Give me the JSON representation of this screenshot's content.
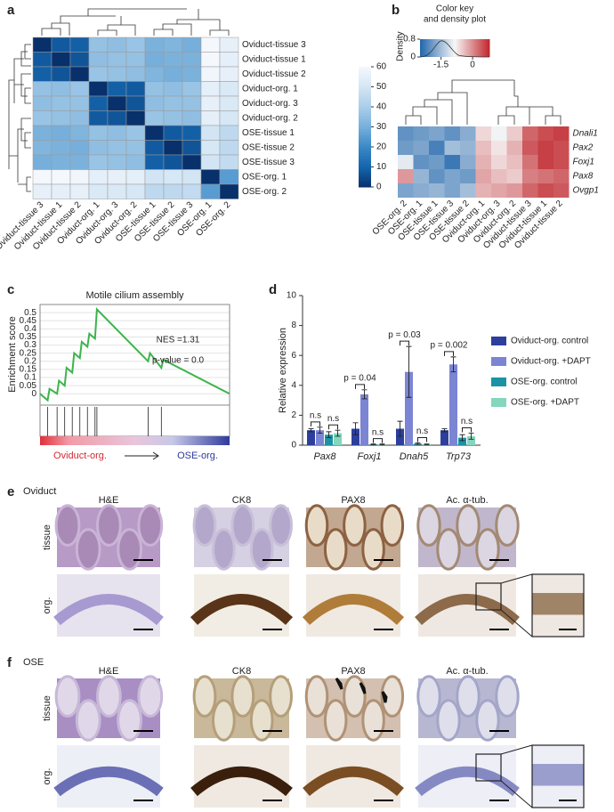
{
  "chart_data": [
    {
      "type": "heatmap",
      "rows": [
        "Oviduct-tissue 3",
        "Oviduct-tissue 1",
        "Oviduct-tissue 2",
        "Oviduct-org. 1",
        "Oviduct-org. 3",
        "Oviduct-org. 2",
        "OSE-tissue 1",
        "OSE-tissue 2",
        "OSE-tissue 3",
        "OSE-org. 1",
        "OSE-org. 2"
      ],
      "columns": [
        "Oviduct-tissue 3",
        "Oviduct-tissue 1",
        "Oviduct-tissue 2",
        "Oviduct-org. 1",
        "Oviduct-org. 3",
        "Oviduct-org. 2",
        "OSE-tissue 1",
        "OSE-tissue 2",
        "OSE-tissue 3",
        "OSE-org. 1",
        "OSE-org. 2"
      ],
      "matrix": [
        [
          0,
          8,
          9,
          36,
          35,
          37,
          31,
          32,
          30,
          60,
          56
        ],
        [
          8,
          0,
          7,
          35,
          36,
          36,
          30,
          31,
          31,
          60,
          55
        ],
        [
          9,
          7,
          0,
          37,
          36,
          35,
          32,
          30,
          31,
          59,
          56
        ],
        [
          36,
          35,
          37,
          0,
          9,
          8,
          36,
          35,
          37,
          55,
          52
        ],
        [
          35,
          36,
          36,
          9,
          0,
          7,
          35,
          36,
          36,
          56,
          52
        ],
        [
          37,
          36,
          35,
          8,
          7,
          0,
          37,
          36,
          35,
          55,
          51
        ],
        [
          31,
          30,
          32,
          36,
          35,
          37,
          0,
          8,
          9,
          50,
          45
        ],
        [
          32,
          31,
          30,
          35,
          36,
          36,
          8,
          0,
          7,
          51,
          45
        ],
        [
          30,
          31,
          31,
          37,
          36,
          35,
          9,
          7,
          0,
          50,
          46
        ],
        [
          60,
          60,
          59,
          55,
          56,
          55,
          50,
          51,
          50,
          0,
          25
        ],
        [
          56,
          55,
          56,
          52,
          52,
          51,
          45,
          45,
          46,
          25,
          0
        ]
      ],
      "clim": [
        0,
        60
      ],
      "cticks": [
        0,
        10,
        20,
        30,
        40,
        50,
        60
      ]
    },
    {
      "type": "heatmap-diverging",
      "title": "Color key",
      "subtitle": "and density plot",
      "ylabel": "Density",
      "rows": [
        "Dnali1",
        "Pax2",
        "Foxj1",
        "Pax8",
        "Ovgp1"
      ],
      "columns": [
        "OSE-org. 2",
        "OSE-org. 1",
        "OSE-tissue 1",
        "OSE-tissue 3",
        "OSE-tissue 2",
        "Oviduct-org. 1",
        "Oviduct-org. 3",
        "Oviduct-org. 2",
        "Oviduct-tissue 3",
        "Oviduct-tissue 1",
        "Oviduct-tissue 2"
      ],
      "matrix": [
        [
          -2.0,
          -1.9,
          -1.8,
          -2.0,
          -1.7,
          -0.6,
          -0.9,
          -0.5,
          0.3,
          0.5,
          0.6
        ],
        [
          -1.9,
          -1.8,
          -2.2,
          -1.5,
          -1.6,
          -0.4,
          -0.7,
          -0.3,
          0.4,
          0.6,
          0.5
        ],
        [
          -1.0,
          -2.0,
          -1.9,
          -2.3,
          -1.7,
          -0.3,
          -0.6,
          -0.4,
          0.2,
          0.6,
          0.5
        ],
        [
          -0.1,
          -1.6,
          -2.0,
          -1.8,
          -1.9,
          -0.2,
          -0.4,
          -0.5,
          0.1,
          0.2,
          0.3
        ],
        [
          -1.8,
          -1.7,
          -1.6,
          -1.8,
          -1.5,
          -0.3,
          -0.2,
          -0.1,
          0.3,
          0.5,
          0.4
        ]
      ],
      "xlim": [
        -2.5,
        0.8
      ],
      "xticks": [
        -1.5,
        0
      ],
      "ylim": [
        0,
        0.8
      ],
      "yticks": [
        0,
        0.8
      ]
    },
    {
      "type": "line",
      "title": "Motile cilium assembly",
      "ylabel": "Enrichment score",
      "annotations": [
        "NES =1.31",
        "p-value = 0.0"
      ],
      "x": [
        0,
        4,
        5,
        9,
        10,
        13,
        14,
        17,
        18,
        21,
        22,
        25,
        26,
        29,
        30,
        57,
        58,
        64,
        65,
        100
      ],
      "series": [
        {
          "name": "Motile cilium assembly",
          "color": "#3cb44b",
          "values": [
            0,
            -0.04,
            0.03,
            0.0,
            0.08,
            0.05,
            0.16,
            0.13,
            0.25,
            0.22,
            0.32,
            0.29,
            0.37,
            0.34,
            0.52,
            0.2,
            0.25,
            0.16,
            0.21,
            0
          ]
        }
      ],
      "hits": [
        4,
        9,
        13,
        17,
        21,
        25,
        29,
        30,
        57,
        64
      ],
      "xlim": [
        0,
        100
      ],
      "ylim": [
        -0.07,
        0.55
      ],
      "yticks": [
        0,
        0.05,
        0.1,
        0.15,
        0.2,
        0.25,
        0.3,
        0.35,
        0.4,
        0.45,
        0.5
      ],
      "grid": true,
      "group_labels": [
        "Oviduct-org.",
        "OSE-org."
      ]
    },
    {
      "type": "bar",
      "ylabel": "Relative expression",
      "categories": [
        "Pax8",
        "Foxj1",
        "Dnah5",
        "Trp73"
      ],
      "series": [
        {
          "name": "Oviduct-org. control",
          "color": "#2c3f9c",
          "values": [
            1.0,
            1.1,
            1.1,
            1.0
          ],
          "errors": [
            0.1,
            0.4,
            0.5,
            0.1
          ]
        },
        {
          "name": "Oviduct-org. +DAPT",
          "color": "#7b85d4",
          "values": [
            1.0,
            3.4,
            4.9,
            5.4
          ],
          "errors": [
            0.2,
            0.3,
            1.7,
            0.5
          ]
        },
        {
          "name": "OSE-org. control",
          "color": "#1b93a5",
          "values": [
            0.7,
            0.05,
            0.1,
            0.5
          ],
          "errors": [
            0.2,
            0.03,
            0.05,
            0.2
          ]
        },
        {
          "name": "OSE-org. +DAPT",
          "color": "#84d6bd",
          "values": [
            0.8,
            0.05,
            0.05,
            0.6
          ],
          "errors": [
            0.2,
            0.03,
            0.03,
            0.2
          ]
        }
      ],
      "annotations": [
        "n.s",
        "n.s",
        "p = 0.04",
        "n.s",
        "p = 0.03",
        "n.s",
        "p = 0.002",
        "n.s"
      ],
      "ylim": [
        0,
        10
      ],
      "yticks": [
        0,
        2,
        4,
        6,
        8,
        10
      ]
    }
  ],
  "figure": {
    "letters": [
      "a",
      "b",
      "c",
      "d"
    ],
    "panels": [
      {
        "letter": "e",
        "tissue": "Oviduct",
        "columns": [
          "H&E",
          "CK8",
          "PAX8",
          "Ac. α-tub."
        ],
        "rows": [
          "tissue",
          "org."
        ]
      },
      {
        "letter": "f",
        "tissue": "OSE",
        "columns": [
          "H&E",
          "CK8",
          "PAX8",
          "Ac. α-tub."
        ],
        "rows": [
          "tissue",
          "org."
        ]
      }
    ]
  }
}
